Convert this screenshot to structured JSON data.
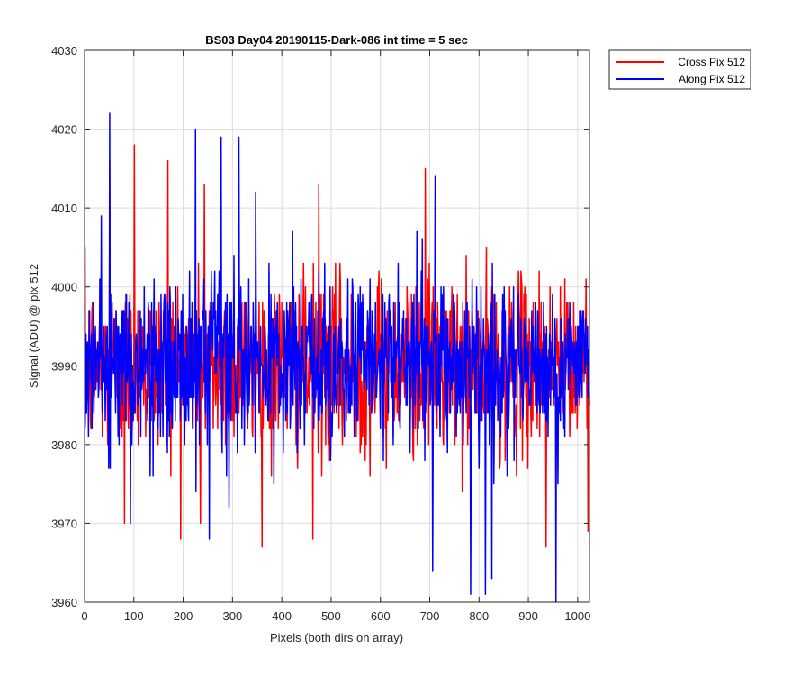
{
  "chart_data": {
    "type": "line",
    "title": "BS03 Day04 20190115-Dark-086 int time = 5 sec",
    "xlabel": "Pixels (both dirs on array)",
    "ylabel": "Signal (ADU) @ pix 512",
    "xlim": [
      0,
      1024
    ],
    "ylim": [
      3960,
      4030
    ],
    "xticks": [
      0,
      100,
      200,
      300,
      400,
      500,
      600,
      700,
      800,
      900,
      1000
    ],
    "yticks": [
      3960,
      3970,
      3980,
      3990,
      4000,
      4010,
      4020,
      4030
    ],
    "grid": true,
    "legend_position": "outside-top-right",
    "series": [
      {
        "name": "Cross Pix 512",
        "color": "#ff0000",
        "mean": 3990,
        "std": 5.5,
        "n_points": 1024,
        "peaks": [
          {
            "x": 50,
            "y": 4016
          },
          {
            "x": 100,
            "y": 4018
          },
          {
            "x": 168,
            "y": 4016
          },
          {
            "x": 242,
            "y": 4013
          },
          {
            "x": 474,
            "y": 4013
          },
          {
            "x": 690,
            "y": 4015
          }
        ],
        "troughs": [
          {
            "x": 80,
            "y": 3970
          },
          {
            "x": 234,
            "y": 3970
          },
          {
            "x": 462,
            "y": 3968
          },
          {
            "x": 935,
            "y": 3967
          },
          {
            "x": 1020,
            "y": 3969
          }
        ]
      },
      {
        "name": "Along Pix 512",
        "color": "#0000ff",
        "mean": 3990,
        "std": 5.5,
        "n_points": 1024,
        "peaks": [
          {
            "x": 50,
            "y": 4022
          },
          {
            "x": 224,
            "y": 4020
          },
          {
            "x": 276,
            "y": 4019
          },
          {
            "x": 312,
            "y": 4019
          },
          {
            "x": 710,
            "y": 4014
          }
        ],
        "troughs": [
          {
            "x": 92,
            "y": 3970
          },
          {
            "x": 252,
            "y": 3968
          },
          {
            "x": 705,
            "y": 3964
          },
          {
            "x": 782,
            "y": 3961
          },
          {
            "x": 812,
            "y": 3961
          },
          {
            "x": 825,
            "y": 3963
          },
          {
            "x": 955,
            "y": 3960
          }
        ]
      }
    ]
  }
}
